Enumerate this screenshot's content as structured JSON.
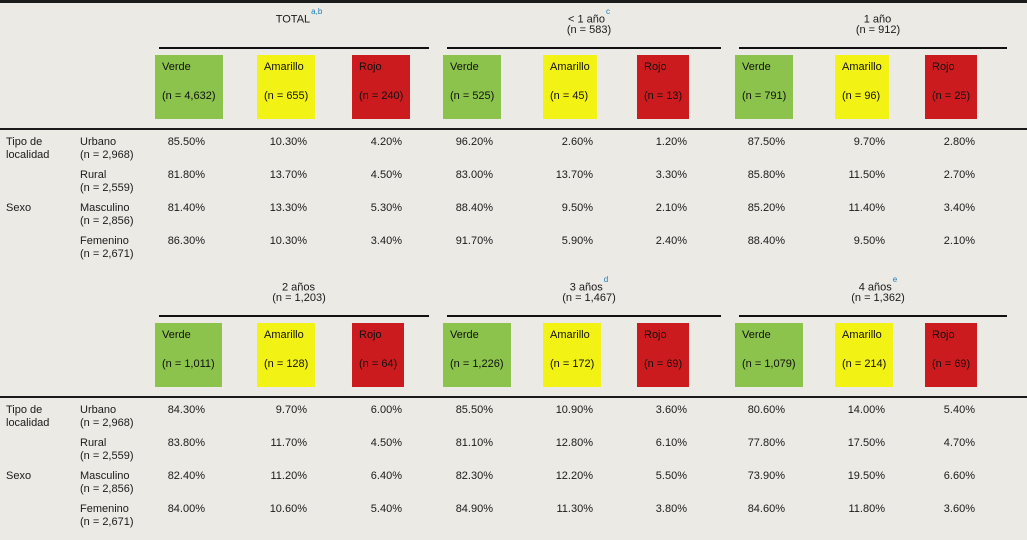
{
  "table": {
    "colors": {
      "bg": "#ECEAE5",
      "verde": "#8CC34C",
      "amarillo": "#F2F215",
      "rojo": "#CC1B1E",
      "superscript": "#1C7DB5"
    },
    "category_headers": [
      "Tipo de localidad",
      "Sexo"
    ],
    "sections": [
      {
        "groups": [
          {
            "title": "TOTAL",
            "sup": "a,b",
            "n": "",
            "boxes": [
              {
                "label": "Verde",
                "n": "(n = 4,632)"
              },
              {
                "label": "Amarillo",
                "n": "(n = 655)"
              },
              {
                "label": "Rojo",
                "n": "(n = 240)"
              }
            ]
          },
          {
            "title": "< 1 año",
            "sup": "c",
            "n": "(n = 583)",
            "boxes": [
              {
                "label": "Verde",
                "n": "(n = 525)"
              },
              {
                "label": "Amarillo",
                "n": "(n = 45)"
              },
              {
                "label": "Rojo",
                "n": "(n = 13)"
              }
            ]
          },
          {
            "title": "1 año",
            "sup": "",
            "n": "(n = 912)",
            "boxes": [
              {
                "label": "Verde",
                "n": "(n = 791)"
              },
              {
                "label": "Amarillo",
                "n": "(n = 96)"
              },
              {
                "label": "Rojo",
                "n": "(n = 25)"
              }
            ]
          }
        ],
        "rows": [
          {
            "cat": "Tipo de localidad",
            "sub": "Urbano",
            "sub_n": "(n = 2,968)",
            "v": [
              "85.50%",
              "10.30%",
              "4.20%",
              "96.20%",
              "2.60%",
              "1.20%",
              "87.50%",
              "9.70%",
              "2.80%"
            ]
          },
          {
            "cat": "",
            "sub": "Rural",
            "sub_n": "(n = 2,559)",
            "v": [
              "81.80%",
              "13.70%",
              "4.50%",
              "83.00%",
              "13.70%",
              "3.30%",
              "85.80%",
              "11.50%",
              "2.70%"
            ]
          },
          {
            "cat": "Sexo",
            "sub": "Masculino",
            "sub_n": "(n = 2,856)",
            "v": [
              "81.40%",
              "13.30%",
              "5.30%",
              "88.40%",
              "9.50%",
              "2.10%",
              "85.20%",
              "11.40%",
              "3.40%"
            ]
          },
          {
            "cat": "",
            "sub": "Femenino",
            "sub_n": "(n = 2,671)",
            "v": [
              "86.30%",
              "10.30%",
              "3.40%",
              "91.70%",
              "5.90%",
              "2.40%",
              "88.40%",
              "9.50%",
              "2.10%"
            ]
          }
        ]
      },
      {
        "groups": [
          {
            "title": "2 años",
            "sup": "",
            "n": "(n = 1,203)",
            "boxes": [
              {
                "label": "Verde",
                "n": "(n = 1,011)"
              },
              {
                "label": "Amarillo",
                "n": "(n = 128)"
              },
              {
                "label": "Rojo",
                "n": "(n = 64)"
              }
            ]
          },
          {
            "title": "3 años",
            "sup": "d",
            "n": "(n = 1,467)",
            "boxes": [
              {
                "label": "Verde",
                "n": "(n = 1,226)"
              },
              {
                "label": "Amarillo",
                "n": "(n = 172)"
              },
              {
                "label": "Rojo",
                "n": "(n = 69)"
              }
            ]
          },
          {
            "title": "4 años",
            "sup": "e",
            "n": "(n = 1,362)",
            "boxes": [
              {
                "label": "Verde",
                "n": "(n = 1,079)"
              },
              {
                "label": "Amarillo",
                "n": "(n = 214)"
              },
              {
                "label": "Rojo",
                "n": "(n = 69)"
              }
            ]
          }
        ],
        "rows": [
          {
            "cat": "Tipo de localidad",
            "sub": "Urbano",
            "sub_n": "(n = 2,968)",
            "v": [
              "84.30%",
              "9.70%",
              "6.00%",
              "85.50%",
              "10.90%",
              "3.60%",
              "80.60%",
              "14.00%",
              "5.40%"
            ]
          },
          {
            "cat": "",
            "sub": "Rural",
            "sub_n": "(n = 2,559)",
            "v": [
              "83.80%",
              "11.70%",
              "4.50%",
              "81.10%",
              "12.80%",
              "6.10%",
              "77.80%",
              "17.50%",
              "4.70%"
            ]
          },
          {
            "cat": "Sexo",
            "sub": "Masculino",
            "sub_n": "(n = 2,856)",
            "v": [
              "82.40%",
              "11.20%",
              "6.40%",
              "82.30%",
              "12.20%",
              "5.50%",
              "73.90%",
              "19.50%",
              "6.60%"
            ]
          },
          {
            "cat": "",
            "sub": "Femenino",
            "sub_n": "(n = 2,671)",
            "v": [
              "84.00%",
              "10.60%",
              "5.40%",
              "84.90%",
              "11.30%",
              "3.80%",
              "84.60%",
              "11.80%",
              "3.60%"
            ]
          }
        ]
      }
    ]
  }
}
